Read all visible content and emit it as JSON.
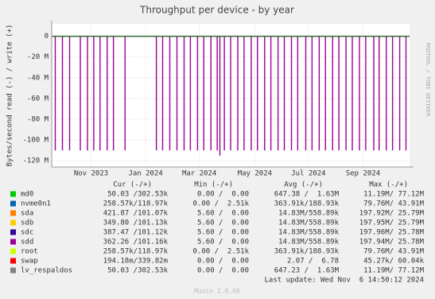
{
  "chart_data": {
    "type": "bar",
    "title": "Throughput per device - by year",
    "y_label": "Bytes/second read (-) / write (+)",
    "watermark": "RRDTOOL / TOBI OETIKER",
    "color": "#990099",
    "grid": true,
    "xlim": [
      0,
      400
    ],
    "ylim": [
      -126,
      12
    ],
    "xticks": [
      {
        "value": 44,
        "label": "Nov 2023"
      },
      {
        "value": 105,
        "label": "Jan 2024"
      },
      {
        "value": 165,
        "label": "Mar 2024"
      },
      {
        "value": 227,
        "label": "May 2024"
      },
      {
        "value": 287,
        "label": "Jul 2024"
      },
      {
        "value": 348,
        "label": "Sep 2024"
      }
    ],
    "yticks": [
      0,
      {
        "value": -20,
        "label": "-20 M"
      },
      {
        "value": -40,
        "label": "-40 M"
      },
      {
        "value": -60,
        "label": "-60 M"
      },
      {
        "value": -80,
        "label": "-80 M"
      },
      {
        "value": -100,
        "label": "-100 M"
      },
      {
        "value": -120,
        "label": "-120 M"
      }
    ],
    "x": [
      4,
      12,
      20,
      32,
      40,
      47,
      54,
      62,
      69,
      82,
      117,
      124,
      132,
      140,
      148,
      155,
      163,
      170,
      178,
      185,
      188,
      193,
      200,
      208,
      215,
      223,
      230,
      238,
      245,
      253,
      260,
      268,
      275,
      284,
      291,
      299,
      306,
      314,
      321,
      329,
      336,
      344,
      351,
      360,
      366,
      374,
      381,
      389,
      396
    ],
    "values": [
      -110,
      -110,
      -110,
      -110,
      -110,
      -110,
      -110,
      -110,
      -110,
      -110,
      -110,
      -110,
      -110,
      -110,
      -110,
      -110,
      -110,
      -110,
      -110,
      -110,
      -115,
      -110,
      -110,
      -110,
      -110,
      -110,
      -110,
      -110,
      -110,
      -110,
      -110,
      -110,
      -110,
      -110,
      -110,
      -110,
      -110,
      -110,
      -110,
      -110,
      -110,
      -110,
      -110,
      -110,
      -110,
      -110,
      -110,
      -110,
      -110
    ]
  },
  "legend": {
    "headers": [
      "Cur (-/+)",
      "Min (-/+)",
      "Avg (-/+)",
      "Max (-/+)"
    ],
    "rows": [
      {
        "name": "md0",
        "color": "#00cc00",
        "cells": [
          "50.03 /302.53k",
          "0.00 /  0.00",
          "647.38 /  1.63M",
          "11.19M/ 77.12M"
        ]
      },
      {
        "name": "nvme0n1",
        "color": "#0066b3",
        "cells": [
          "258.57k/118.97k",
          "0.00 /  2.51k",
          "363.91k/188.93k",
          "79.76M/ 43.91M"
        ]
      },
      {
        "name": "sda",
        "color": "#ff8000",
        "cells": [
          "421.87 /101.07k",
          "5.60 /  0.00",
          "14.83M/558.89k",
          "197.92M/ 25.79M"
        ]
      },
      {
        "name": "sdb",
        "color": "#ffcc00",
        "cells": [
          "349.80 /101.13k",
          "5.60 /  0.00",
          "14.83M/558.89k",
          "197.95M/ 25.79M"
        ]
      },
      {
        "name": "sdc",
        "color": "#330099",
        "cells": [
          "387.47 /101.12k",
          "5.60 /  0.00",
          "14.83M/558.89k",
          "197.96M/ 25.78M"
        ]
      },
      {
        "name": "sdd",
        "color": "#990099",
        "cells": [
          "362.26 /101.16k",
          "5.60 /  0.00",
          "14.83M/558.89k",
          "197.94M/ 25.78M"
        ]
      },
      {
        "name": "root",
        "color": "#ccff00",
        "cells": [
          "258.57k/118.97k",
          "0.00 /  2.51k",
          "363.91k/188.93k",
          "79.76M/ 43.91M"
        ]
      },
      {
        "name": "swap",
        "color": "#ff0000",
        "cells": [
          "194.18m/339.82m",
          "0.00 /  0.00",
          "2.07 /  6.78",
          "45.27k/ 60.04k"
        ]
      },
      {
        "name": "lv_respaldos",
        "color": "#808080",
        "cells": [
          "50.03 /302.53k",
          "0.00 /  0.00",
          "647.23 /  1.63M",
          "11.19M/ 77.12M"
        ]
      }
    ]
  },
  "last_update": "Last update: Wed Nov  6 14:50:12 2024",
  "footer": "Munin 2.0.66"
}
